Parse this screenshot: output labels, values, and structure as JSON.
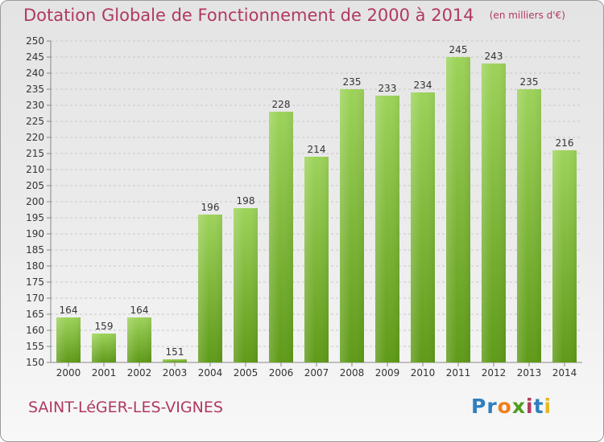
{
  "header": {
    "title": "Dotation Globale de Fonctionnement de 2000 à 2014",
    "unit": "(en milliers d'€)"
  },
  "footer": {
    "commune": "SAINT-LéGER-LES-VIGNES",
    "logo": [
      "Pr",
      "o",
      "x",
      "i",
      "t",
      "i"
    ]
  },
  "colors": {
    "title": "#b0395f",
    "bar_top": "#9dd35a",
    "bar_bottom": "#5f9a18",
    "grid": "#c8c8c8",
    "text": "#333333"
  },
  "chart_data": {
    "type": "bar",
    "title": "Dotation Globale de Fonctionnement de 2000 à 2014",
    "xlabel": "",
    "ylabel": "",
    "categories": [
      "2000",
      "2001",
      "2002",
      "2003",
      "2004",
      "2005",
      "2006",
      "2007",
      "2008",
      "2009",
      "2010",
      "2011",
      "2012",
      "2013",
      "2014"
    ],
    "values": [
      164,
      159,
      164,
      151,
      196,
      198,
      228,
      214,
      235,
      233,
      234,
      245,
      243,
      235,
      216
    ],
    "ylim": [
      150,
      250
    ],
    "yticks": [
      150,
      155,
      160,
      165,
      170,
      175,
      180,
      185,
      190,
      195,
      200,
      205,
      210,
      215,
      220,
      225,
      230,
      235,
      240,
      245,
      250
    ],
    "grid": "horizontal, dashed",
    "data_labels": true
  }
}
